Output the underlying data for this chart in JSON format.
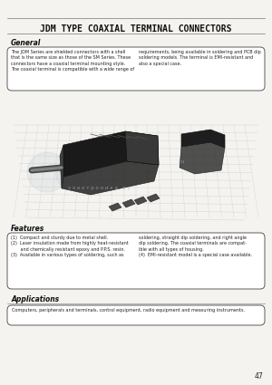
{
  "bg_color": "#f5f3ef",
  "page_bg": "#f5f3ef",
  "title": "JDM TYPE COAXIAL TERMINAL CONNECTORS",
  "title_fontsize": 7.0,
  "title_color": "#111111",
  "general_heading": "General",
  "general_text_left": "The JDM Series are shielded connectors with a shell\nthat is the same size as those of the SM Series. These\nconnectors have a coaxial terminal mounting style.\nThe coaxial terminal is compatible with a wide range of",
  "general_text_right": "requirements, being available in soldering and PCB dip\nsoldering models. The terminal is EMI-resistant and\nalso a special case.",
  "features_heading": "Features",
  "features_text_left": "(1)  Compact and sturdy due to metal shell.\n(2)  Laser insulation made from highly heat-resistant\n       and chemically resistant epoxy and P.P.S. resin.\n(3)  Available in various types of soldering, such as",
  "features_text_right": "soldering, straight dip soldering, and right angle\ndip soldering. The coaxial terminals are compat-\nible with all types of housing.\n(4)  EMI-resistant model is a special case available.",
  "applications_heading": "Applications",
  "applications_text": "Computers, peripherals and terminals, control equipment, radio equipment and measuring instruments.",
  "page_number": "47",
  "box_facecolor": "#ffffff",
  "box_edgecolor": "#444444",
  "text_color": "#222222",
  "heading_color": "#111111",
  "line_color": "#777777",
  "grid_color": "#c0c0c0",
  "watermark_text_color": "#aabfcf",
  "watermark_circle_color": "#aabfcf"
}
